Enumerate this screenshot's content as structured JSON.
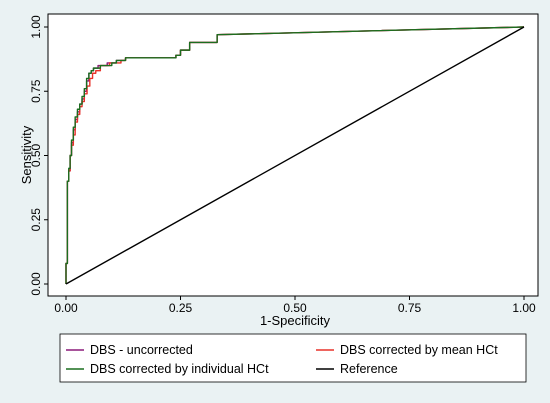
{
  "chart_data": {
    "type": "line",
    "title": "",
    "xlabel": "1-Specificity",
    "ylabel": "Sensitivity",
    "xlim": [
      0,
      1
    ],
    "ylim": [
      0,
      1
    ],
    "x_ticks": [
      "0.00",
      "0.25",
      "0.50",
      "0.75",
      "1.00"
    ],
    "y_ticks": [
      "0.00",
      "0.25",
      "0.50",
      "0.75",
      "1.00"
    ],
    "grid": false,
    "legend_position": "bottom",
    "series": [
      {
        "name": "DBS - uncorrected",
        "color": "#8b1a7a",
        "x": [
          0,
          0,
          0.003,
          0.003,
          0.006,
          0.006,
          0.009,
          0.009,
          0.012,
          0.012,
          0.016,
          0.016,
          0.02,
          0.02,
          0.025,
          0.025,
          0.03,
          0.03,
          0.035,
          0.035,
          0.04,
          0.04,
          0.045,
          0.045,
          0.05,
          0.05,
          0.055,
          0.055,
          0.06,
          0.06,
          0.07,
          0.07,
          0.09,
          0.09,
          0.11,
          0.11,
          0.13,
          0.13,
          0.24,
          0.24,
          0.25,
          0.25,
          0.27,
          0.27,
          0.33,
          0.33,
          1.0
        ],
        "y": [
          0,
          0.08,
          0.08,
          0.4,
          0.4,
          0.44,
          0.44,
          0.5,
          0.5,
          0.55,
          0.55,
          0.6,
          0.6,
          0.64,
          0.64,
          0.67,
          0.67,
          0.7,
          0.7,
          0.72,
          0.72,
          0.75,
          0.75,
          0.79,
          0.79,
          0.82,
          0.82,
          0.83,
          0.83,
          0.84,
          0.84,
          0.85,
          0.85,
          0.86,
          0.86,
          0.87,
          0.87,
          0.88,
          0.88,
          0.89,
          0.89,
          0.91,
          0.91,
          0.94,
          0.94,
          0.97,
          1.0
        ]
      },
      {
        "name": "DBS corrected by mean HCt",
        "color": "#e8322a",
        "x": [
          0,
          0,
          0.003,
          0.003,
          0.006,
          0.006,
          0.009,
          0.009,
          0.012,
          0.012,
          0.016,
          0.016,
          0.02,
          0.02,
          0.025,
          0.025,
          0.03,
          0.03,
          0.035,
          0.035,
          0.04,
          0.04,
          0.046,
          0.046,
          0.052,
          0.052,
          0.058,
          0.058,
          0.065,
          0.065,
          0.075,
          0.075,
          0.095,
          0.095,
          0.12,
          0.12,
          0.13,
          0.13,
          0.24,
          0.24,
          0.25,
          0.25,
          0.27,
          0.27,
          0.33,
          0.33,
          1.0
        ],
        "y": [
          0,
          0.08,
          0.08,
          0.4,
          0.4,
          0.44,
          0.44,
          0.5,
          0.5,
          0.54,
          0.54,
          0.58,
          0.58,
          0.63,
          0.63,
          0.66,
          0.66,
          0.69,
          0.69,
          0.71,
          0.71,
          0.74,
          0.74,
          0.77,
          0.77,
          0.8,
          0.8,
          0.82,
          0.82,
          0.83,
          0.83,
          0.85,
          0.85,
          0.86,
          0.86,
          0.87,
          0.87,
          0.88,
          0.88,
          0.89,
          0.89,
          0.91,
          0.91,
          0.94,
          0.94,
          0.97,
          1.0
        ]
      },
      {
        "name": "DBS corrected by individual HCt",
        "color": "#1a6e1f",
        "x": [
          0,
          0,
          0.003,
          0.003,
          0.006,
          0.006,
          0.009,
          0.009,
          0.012,
          0.012,
          0.016,
          0.016,
          0.02,
          0.02,
          0.025,
          0.025,
          0.03,
          0.03,
          0.035,
          0.035,
          0.04,
          0.04,
          0.045,
          0.045,
          0.05,
          0.05,
          0.055,
          0.055,
          0.06,
          0.06,
          0.075,
          0.075,
          0.1,
          0.1,
          0.11,
          0.11,
          0.13,
          0.13,
          0.24,
          0.24,
          0.25,
          0.25,
          0.27,
          0.27,
          0.33,
          0.33,
          1.0
        ],
        "y": [
          0,
          0.08,
          0.08,
          0.4,
          0.4,
          0.45,
          0.45,
          0.5,
          0.5,
          0.56,
          0.56,
          0.61,
          0.61,
          0.65,
          0.65,
          0.68,
          0.68,
          0.7,
          0.7,
          0.73,
          0.73,
          0.76,
          0.76,
          0.8,
          0.8,
          0.82,
          0.82,
          0.83,
          0.83,
          0.84,
          0.84,
          0.85,
          0.85,
          0.86,
          0.86,
          0.87,
          0.87,
          0.88,
          0.88,
          0.89,
          0.89,
          0.91,
          0.91,
          0.94,
          0.94,
          0.97,
          1.0
        ]
      },
      {
        "name": "Reference",
        "color": "#000000",
        "x": [
          0,
          1
        ],
        "y": [
          0,
          1
        ]
      }
    ]
  }
}
